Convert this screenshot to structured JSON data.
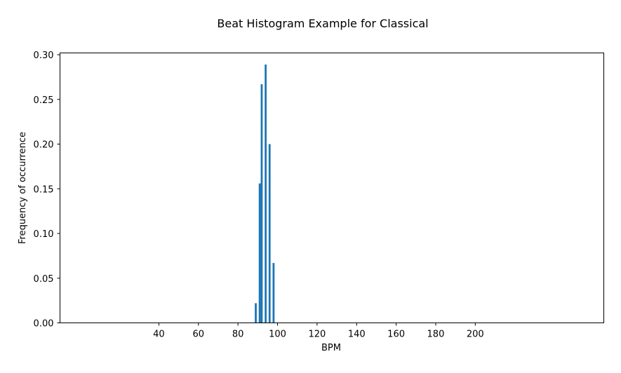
{
  "chart_data": {
    "type": "bar",
    "title": "Beat Histogram Example for Classical",
    "xlabel": "BPM",
    "ylabel": "Frequency of occurrence",
    "xlim": [
      -10,
      265
    ],
    "ylim": [
      0,
      0.302
    ],
    "xticks": [
      40,
      60,
      80,
      100,
      120,
      140,
      160,
      180,
      200
    ],
    "yticks": [
      0.0,
      0.05,
      0.1,
      0.15,
      0.2,
      0.25,
      0.3
    ],
    "ytick_labels": [
      "0.00",
      "0.05",
      "0.10",
      "0.15",
      "0.20",
      "0.25",
      "0.30"
    ],
    "bar_width": 1.0,
    "bar_color": "#1f77b4",
    "grid": false,
    "legend": "none",
    "series": [
      {
        "x": [
          89,
          91,
          92,
          94,
          96,
          98
        ],
        "values": [
          0.022,
          0.156,
          0.267,
          0.289,
          0.2,
          0.067
        ]
      }
    ]
  }
}
